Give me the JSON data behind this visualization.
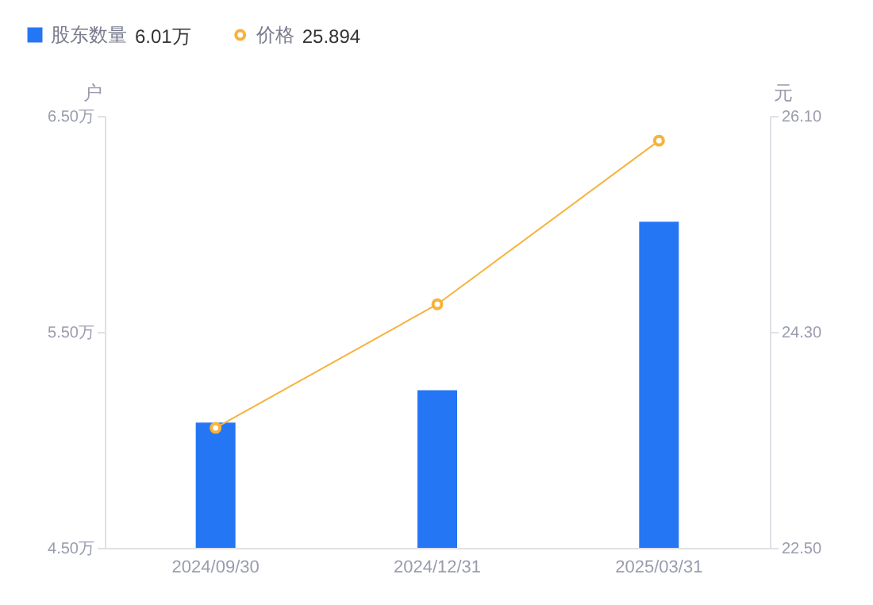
{
  "chart_data": {
    "type": "bar",
    "categories": [
      "2024/09/30",
      "2024/12/31",
      "2025/03/31"
    ],
    "series": [
      {
        "name": "股东数量",
        "color": "#2476f5",
        "values": [
          5.08,
          5.23,
          6.01
        ]
      },
      {
        "name": "价格",
        "type": "line",
        "axis": "y2",
        "color": "#f7b23b",
        "values": [
          23.5,
          24.53,
          25.894
        ],
        "marker": "circle"
      }
    ],
    "annotations": [
      "6.01万",
      "25.894"
    ],
    "ylabel": "户",
    "y2label": "元",
    "ylim": [
      4.5,
      6.5
    ],
    "yticks": [
      {
        "value": 4.5,
        "label": "4.50万"
      },
      {
        "value": 5.5,
        "label": "5.50万"
      },
      {
        "value": 6.5,
        "label": "6.50万"
      }
    ],
    "y2lim": [
      22.5,
      26.1
    ],
    "y2ticks": [
      {
        "value": 22.5,
        "label": "22.50"
      },
      {
        "value": 24.3,
        "label": "24.30"
      },
      {
        "value": 26.1,
        "label": "26.10"
      }
    ],
    "legend": "top left",
    "grid": false
  }
}
